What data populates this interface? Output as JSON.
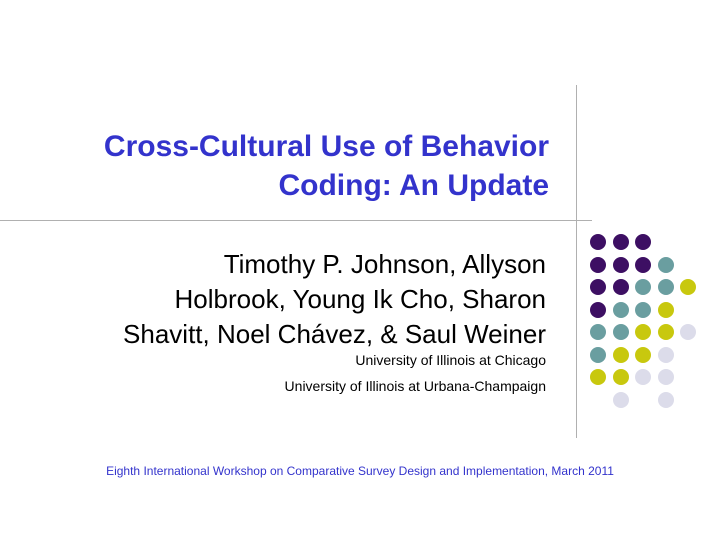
{
  "slide": {
    "title_lines": [
      "Cross-Cultural Use of Behavior",
      "Coding: An Update"
    ],
    "author_lines": [
      "Timothy P. Johnson, Allyson",
      "Holbrook, Young Ik Cho, Sharon",
      "Shavitt, Noel Chávez, & Saul Weiner"
    ],
    "affiliations": [
      "University of Illinois at Chicago",
      "University of Illinois at Urbana-Champaign"
    ],
    "footer": "Eighth International Workshop on Comparative Survey Design and Implementation, March 2011"
  },
  "decoration": {
    "palette": {
      "purple": "#3d0f63",
      "teal": "#6a9ea0",
      "olive": "#c8c80e",
      "lavender": "#dcdcea"
    },
    "dot_grid": [
      [
        "purple",
        "purple",
        "purple",
        null,
        null
      ],
      [
        "purple",
        "purple",
        "purple",
        "teal",
        null
      ],
      [
        "purple",
        "purple",
        "teal",
        "teal",
        "olive"
      ],
      [
        "purple",
        "teal",
        "teal",
        "olive",
        null
      ],
      [
        "teal",
        "teal",
        "olive",
        "olive",
        "lavender"
      ],
      [
        "teal",
        "olive",
        "olive",
        "lavender",
        null
      ],
      [
        "olive",
        "olive",
        "lavender",
        "lavender",
        null
      ],
      [
        null,
        "lavender",
        null,
        "lavender",
        null
      ]
    ]
  }
}
